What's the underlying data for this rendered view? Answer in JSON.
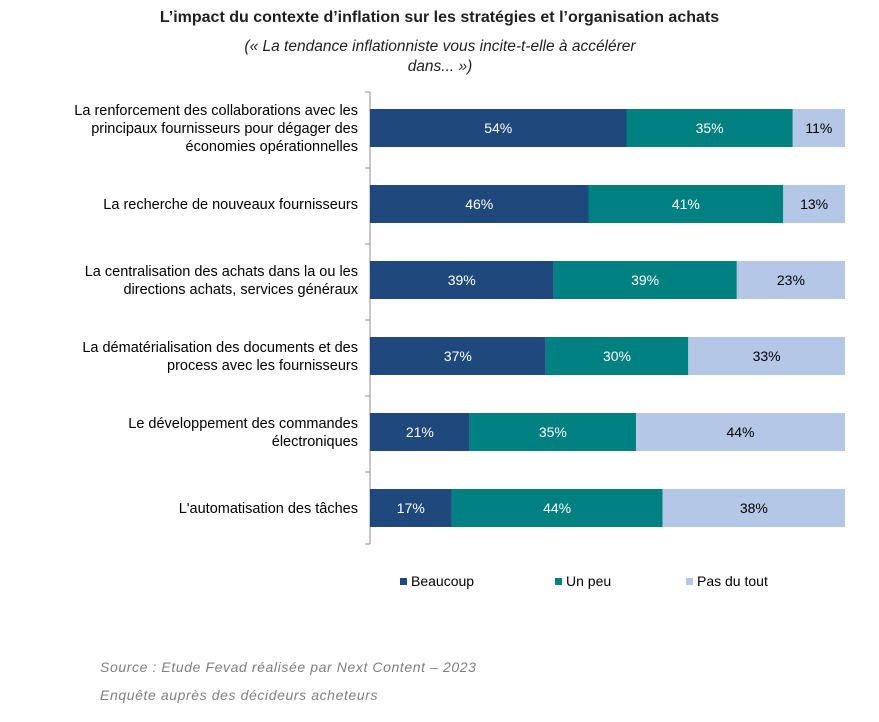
{
  "chart_data": {
    "type": "bar",
    "orientation": "horizontal",
    "stacked": true,
    "percent_stacked": true,
    "title": "L’impact du contexte d’inflation sur les stratégies et l’organisation achats",
    "subtitle_lines": [
      "(« La tendance inflationniste vous incite-t-elle à accélérer",
      "dans... »)"
    ],
    "categories": [
      [
        "La renforcement des collaborations avec les",
        "principaux fournisseurs pour dégager des",
        "économies opérationnelles"
      ],
      [
        "La recherche de nouveaux fournisseurs"
      ],
      [
        "La centralisation des achats dans la ou les",
        "directions achats, services généraux"
      ],
      [
        "La dématérialisation des documents et des",
        "process avec les fournisseurs"
      ],
      [
        "Le développement des commandes",
        "électroniques"
      ],
      [
        "L'automatisation des tâches"
      ]
    ],
    "series": [
      {
        "name": "Beaucoup",
        "values": [
          54,
          46,
          39,
          37,
          21,
          17
        ],
        "labels": [
          "54%",
          "46%",
          "39%",
          "37%",
          "21%",
          "17%"
        ],
        "color": "#1f497d"
      },
      {
        "name": "Un peu",
        "values": [
          35,
          41,
          39,
          30,
          35,
          44
        ],
        "labels": [
          "35%",
          "41%",
          "39%",
          "30%",
          "35%",
          "44%"
        ],
        "color": "#008080"
      },
      {
        "name": "Pas du tout",
        "values": [
          11,
          13,
          23,
          33,
          44,
          38
        ],
        "labels": [
          "11%",
          "13%",
          "23%",
          "33%",
          "44%",
          "38%"
        ],
        "color": "#b4c7e7"
      }
    ],
    "legend_position": "bottom",
    "grid": false
  },
  "source": {
    "line1": "Source : Etude Fevad réalisée par Next Content – 2023",
    "line2": "Enquête auprès des décideurs acheteurs"
  }
}
